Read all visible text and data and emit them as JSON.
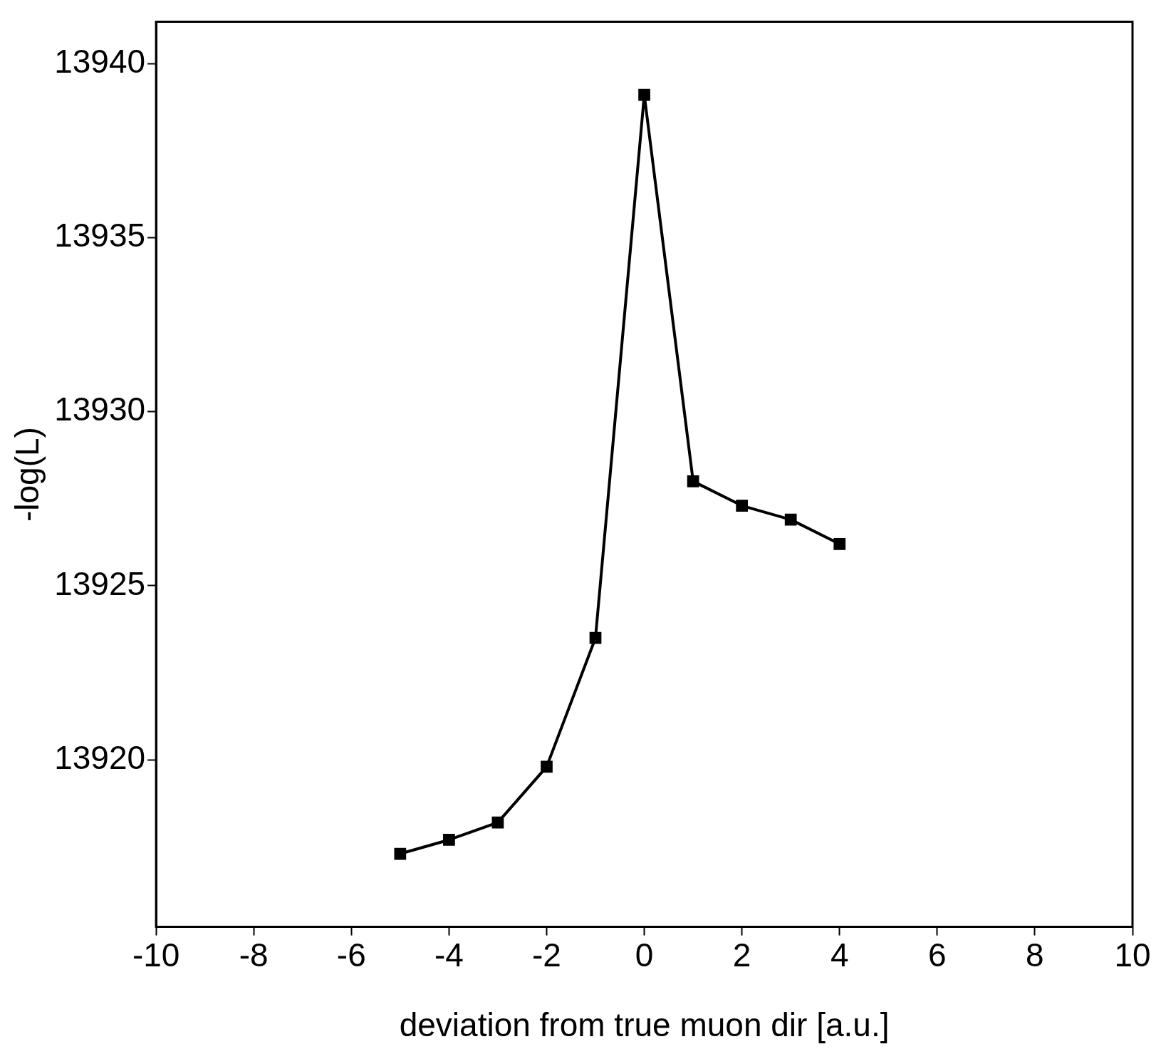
{
  "chart_data": {
    "type": "line",
    "xlabel": "deviation from true muon dir [a.u.]",
    "ylabel": "-log(L)",
    "x": [
      -5,
      -4,
      -3,
      -2,
      -1,
      0,
      1,
      2,
      3,
      4
    ],
    "series": [
      {
        "color": "#000000",
        "values": [
          13917.3,
          13917.7,
          13918.2,
          13919.8,
          13923.5,
          13939.1,
          13928.0,
          13927.3,
          13926.9,
          13926.2
        ]
      }
    ],
    "xlim": [
      -10,
      10
    ],
    "xticks": [
      -10,
      -8,
      -6,
      -4,
      -2,
      0,
      2,
      4,
      6,
      8,
      10
    ],
    "ylim": [
      13915.2,
      13941.2
    ],
    "yticks": [
      13920,
      13925,
      13930,
      13935,
      13940
    ],
    "grid": false,
    "legend": false,
    "marker": "square",
    "line_style": "solid"
  }
}
